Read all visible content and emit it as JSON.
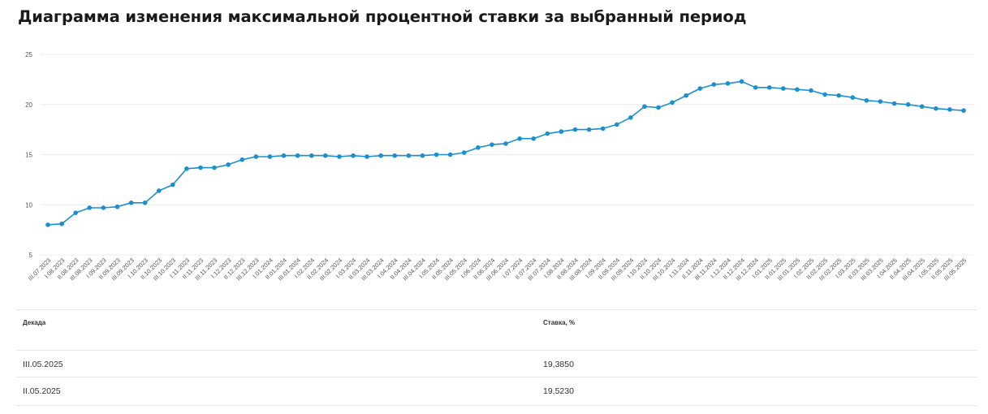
{
  "title": "Диаграмма изменения максимальной процентной ставки за выбранный период",
  "colors": {
    "line": "#1c8fd0",
    "grid": "#ececec",
    "text": "#555555"
  },
  "chart_data": {
    "type": "line",
    "ylim": [
      5,
      25
    ],
    "yticks": [
      25,
      20,
      15,
      10,
      5
    ],
    "grid": true,
    "categories": [
      "III.07.2023",
      "I.08.2023",
      "II.08.2023",
      "III.08.2023",
      "I.09.2023",
      "II.09.2023",
      "III.09.2023",
      "I.10.2023",
      "II.10.2023",
      "III.10.2023",
      "I.11.2023",
      "II.11.2023",
      "III.11.2023",
      "I.12.2023",
      "II.12.2023",
      "III.12.2023",
      "I.01.2024",
      "II.01.2024",
      "III.01.2024",
      "I.02.2024",
      "II.02.2024",
      "III.02.2024",
      "I.03.2024",
      "II.03.2024",
      "III.03.2024",
      "I.04.2024",
      "II.04.2024",
      "III.04.2024",
      "I.05.2024",
      "II.05.2024",
      "III.05.2024",
      "I.06.2024",
      "II.06.2024",
      "III.06.2024",
      "I.07.2024",
      "II.07.2024",
      "III.07.2024",
      "I.08.2024",
      "II.08.2024",
      "III.08.2024",
      "I.09.2024",
      "II.09.2024",
      "III.09.2024",
      "I.10.2024",
      "II.10.2024",
      "III.10.2024",
      "I.11.2024",
      "II.11.2024",
      "III.11.2024",
      "I.12.2024",
      "II.12.2024",
      "III.12.2024",
      "I.01.2025",
      "II.01.2025",
      "III.01.2025",
      "I.02.2025",
      "II.02.2025",
      "III.02.2025",
      "I.03.2025",
      "II.03.2025",
      "III.03.2025",
      "I.04.2025",
      "II.04.2025",
      "III.04.2025",
      "I.05.2025",
      "II.05.2025",
      "III.05.2025"
    ],
    "values": [
      8.0,
      8.1,
      9.2,
      9.7,
      9.7,
      9.8,
      10.2,
      10.2,
      11.4,
      12.0,
      13.6,
      13.7,
      13.7,
      14.0,
      14.5,
      14.8,
      14.8,
      14.9,
      14.9,
      14.9,
      14.9,
      14.8,
      14.9,
      14.8,
      14.9,
      14.9,
      14.9,
      14.9,
      15.0,
      15.0,
      15.2,
      15.7,
      16.0,
      16.1,
      16.6,
      16.6,
      17.1,
      17.3,
      17.5,
      17.5,
      17.6,
      18.0,
      18.7,
      19.8,
      19.7,
      20.2,
      20.9,
      21.6,
      22.0,
      22.1,
      22.3,
      21.7,
      21.7,
      21.6,
      21.5,
      21.4,
      21.0,
      20.9,
      20.7,
      20.4,
      20.3,
      20.1,
      20.0,
      19.8,
      19.6,
      19.5,
      19.4
    ]
  },
  "table": {
    "headers": {
      "period": "Декада",
      "rate": "Ставка, %"
    },
    "rows": [
      {
        "period": "III.05.2025",
        "rate": "19,3850"
      },
      {
        "period": "II.05.2025",
        "rate": "19,5230"
      }
    ]
  }
}
